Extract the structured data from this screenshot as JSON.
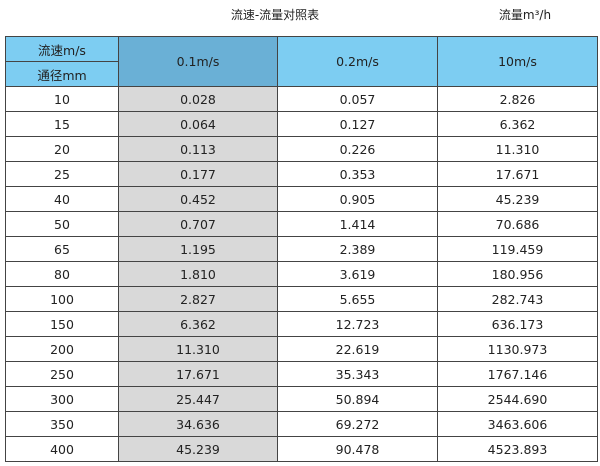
{
  "title": "流速-流量对照表",
  "unit_label": "流量m³/h",
  "colors": {
    "header": "#7dcdf2",
    "header_selected": "#6ab0d6",
    "highlight_column": "#d9d9d9"
  },
  "table": {
    "corner_top": "流速m/s",
    "corner_bottom": "通径mm",
    "columns": [
      "0.1m/s",
      "0.2m/s",
      "10m/s"
    ],
    "rows": [
      [
        "10",
        "0.028",
        "0.057",
        "2.826"
      ],
      [
        "15",
        "0.064",
        "0.127",
        "6.362"
      ],
      [
        "20",
        "0.113",
        "0.226",
        "11.310"
      ],
      [
        "25",
        "0.177",
        "0.353",
        "17.671"
      ],
      [
        "40",
        "0.452",
        "0.905",
        "45.239"
      ],
      [
        "50",
        "0.707",
        "1.414",
        "70.686"
      ],
      [
        "65",
        "1.195",
        "2.389",
        "119.459"
      ],
      [
        "80",
        "1.810",
        "3.619",
        "180.956"
      ],
      [
        "100",
        "2.827",
        "5.655",
        "282.743"
      ],
      [
        "150",
        "6.362",
        "12.723",
        "636.173"
      ],
      [
        "200",
        "11.310",
        "22.619",
        "1130.973"
      ],
      [
        "250",
        "17.671",
        "35.343",
        "1767.146"
      ],
      [
        "300",
        "25.447",
        "50.894",
        "2544.690"
      ],
      [
        "350",
        "34.636",
        "69.272",
        "3463.606"
      ],
      [
        "400",
        "45.239",
        "90.478",
        "4523.893"
      ]
    ]
  }
}
